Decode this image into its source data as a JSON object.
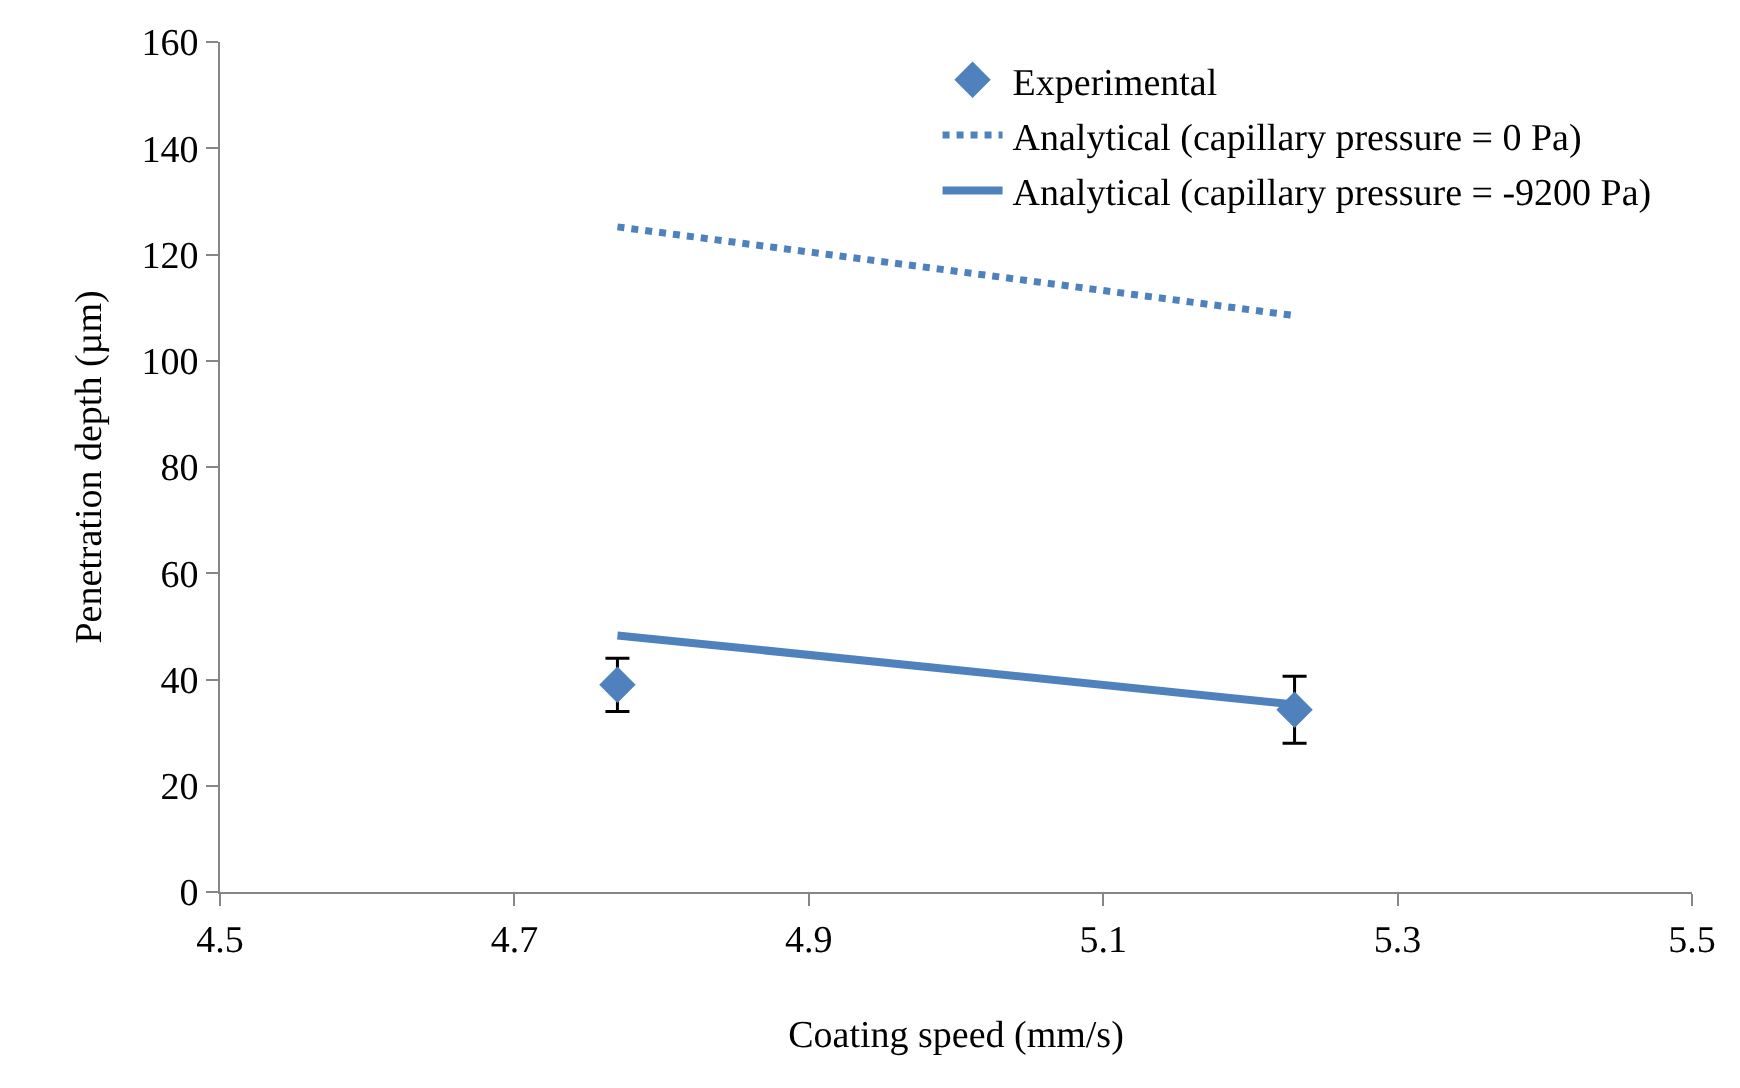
{
  "chart_data": {
    "type": "line",
    "xlabel": "Coating speed (mm/s)",
    "ylabel": "Penetration depth (µm)",
    "x": [
      4.77,
      5.23
    ],
    "xlim": [
      4.5,
      5.5
    ],
    "xticks": [
      4.5,
      4.7,
      4.9,
      5.1,
      5.3,
      5.5
    ],
    "ylim": [
      0,
      160
    ],
    "yticks": [
      0,
      20,
      40,
      60,
      80,
      100,
      120,
      140,
      160
    ],
    "legend": "top right",
    "series": [
      {
        "name": "Experimental",
        "type": "scatter",
        "color": "#4f81bd",
        "values": [
          39.0,
          34.3
        ],
        "errors": [
          5,
          6.3
        ],
        "marker": "diamond"
      },
      {
        "name": "Analytical (capillary pressure = 0 Pa)",
        "color": "#4f81bd",
        "values": [
          125.2,
          108.5
        ],
        "line_style": "dotted",
        "marker": "none"
      },
      {
        "name": "Analytical (capillary pressure = -9200 Pa)",
        "color": "#4f81bd",
        "values": [
          48.3,
          35.3
        ],
        "line_style": "solid",
        "marker": "none"
      }
    ]
  }
}
